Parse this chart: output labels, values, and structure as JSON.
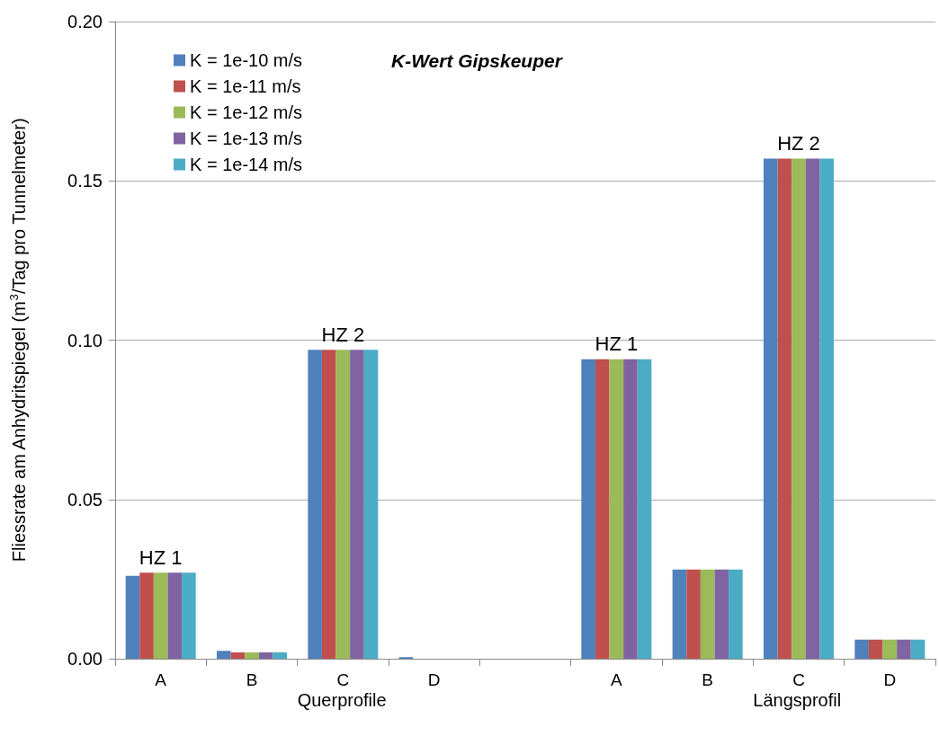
{
  "chart_data": {
    "type": "bar",
    "title": "K-Wert Gipskeuper",
    "ylabel": "Fliessrate am Anhydritspiegel (m$^{3}$/Tag pro Tunnelmeter)",
    "categories": [
      "A",
      "B",
      "C",
      "D",
      null,
      "A",
      "B",
      "C",
      "D"
    ],
    "annotations": [
      "Querprofile",
      "Längsprofil"
    ],
    "series": [
      {
        "name": "K = 1e-10 m/s",
        "color": "#4f81bd",
        "values": [
          0.026,
          0.0025,
          0.097,
          0.0005,
          null,
          0.094,
          0.028,
          0.157,
          0.006
        ]
      },
      {
        "name": "K = 1e-11 m/s",
        "color": "#c0504d",
        "values": [
          0.027,
          0.002,
          0.097,
          0,
          null,
          0.094,
          0.028,
          0.157,
          0.006
        ]
      },
      {
        "name": "K = 1e-12 m/s",
        "color": "#9bbb59",
        "values": [
          0.027,
          0.002,
          0.097,
          0,
          null,
          0.094,
          0.028,
          0.157,
          0.006
        ],
        "value_labels": [
          "HZ 1",
          null,
          "HZ 2",
          null,
          null,
          "HZ 1",
          null,
          "HZ 2",
          null
        ]
      },
      {
        "name": "K = 1e-13 m/s",
        "color": "#8064a2",
        "values": [
          0.027,
          0.002,
          0.097,
          0,
          null,
          0.094,
          0.028,
          0.157,
          0.006
        ]
      },
      {
        "name": "K = 1e-14 m/s",
        "color": "#4bacc6",
        "values": [
          0.027,
          0.002,
          0.097,
          0,
          null,
          0.094,
          0.028,
          0.157,
          0.006
        ]
      }
    ],
    "ylim": [
      0,
      0.2
    ],
    "yticks": [
      {
        "value": 0,
        "label": "0.00"
      },
      {
        "value": 0.05,
        "label": "0.05"
      },
      {
        "value": 0.1,
        "label": "0.10"
      },
      {
        "value": 0.15,
        "label": "0.15"
      },
      {
        "value": 0.2,
        "label": "0.20"
      }
    ],
    "grid": "y",
    "legend": "top left"
  }
}
